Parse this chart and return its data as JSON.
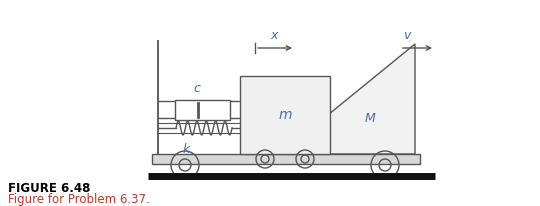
{
  "fig_width": 5.4,
  "fig_height": 2.06,
  "dpi": 100,
  "bg_color": "#ffffff",
  "line_color": "#555555",
  "label_blue": "#4a6fa5",
  "figure_label": "FIGURE 6.48",
  "figure_sublabel": "Figure for Problem 6.37.",
  "figure_label_color": "#000000",
  "figure_sublabel_color": "#c0392b"
}
